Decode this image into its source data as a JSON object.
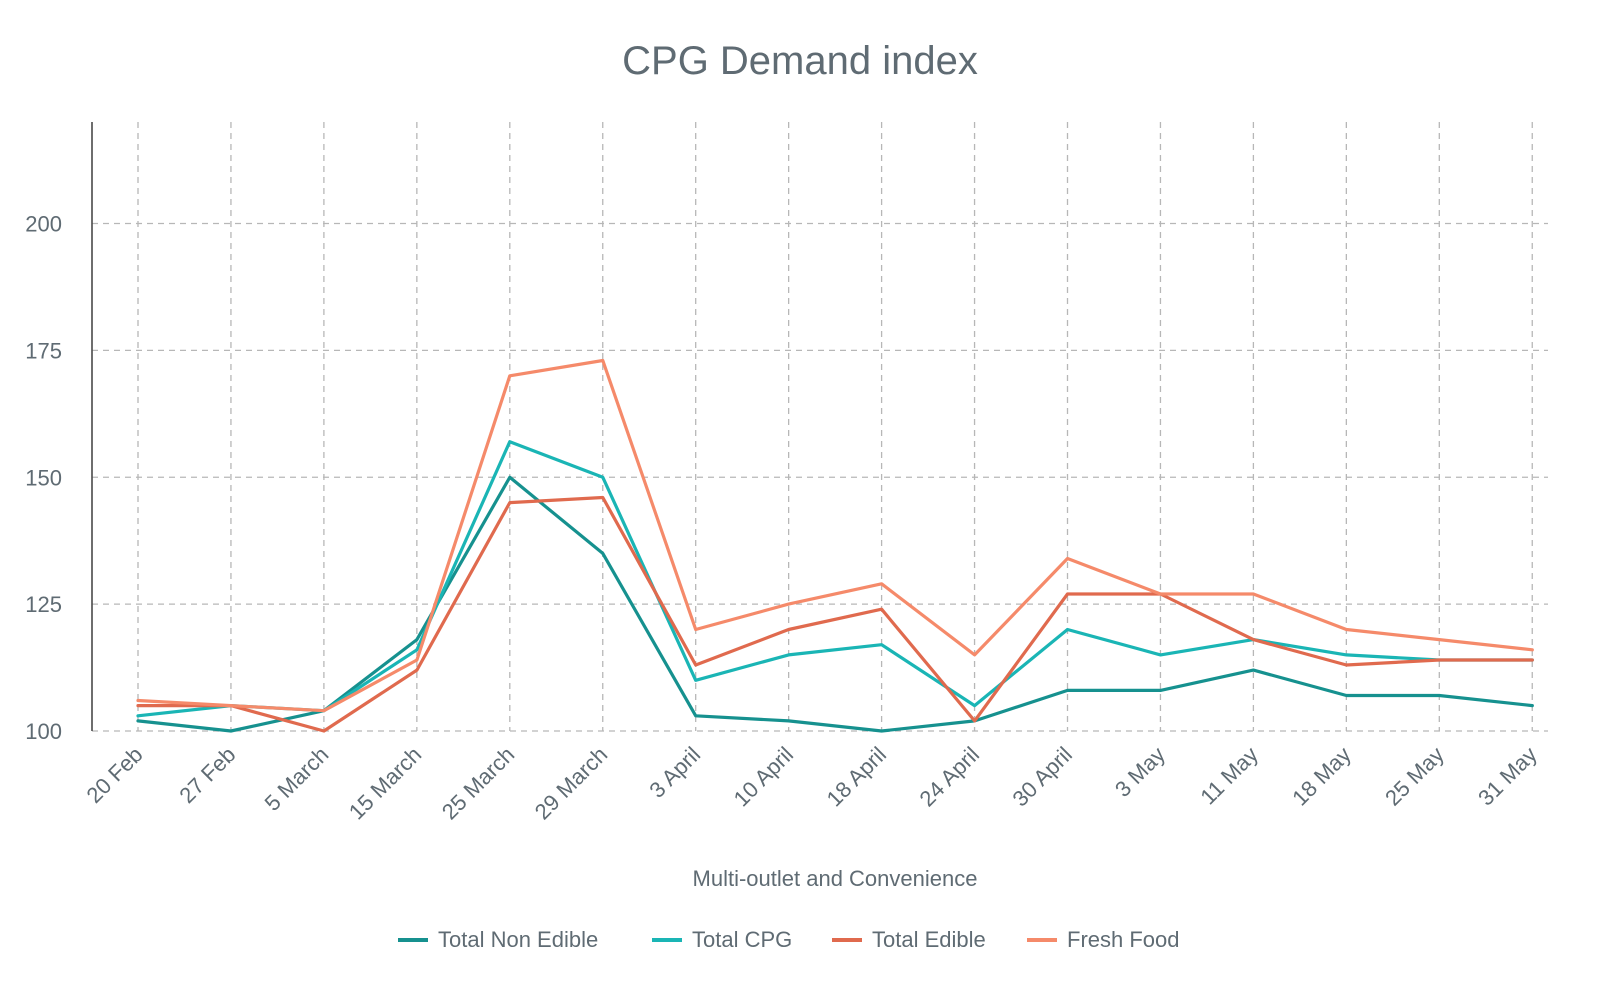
{
  "chart_data": {
    "type": "line",
    "title": "CPG Demand index",
    "xlabel": "Multi-outlet and Convenience",
    "ylabel": "",
    "categories": [
      "20 Feb",
      "27 Feb",
      "5 March",
      "15 March",
      "25 March",
      "29 March",
      "3 April",
      "10 April",
      "18 April",
      "24 April",
      "30 April",
      "3 May",
      "11 May",
      "18 May",
      "25 May",
      "31 May"
    ],
    "yticks": [
      100,
      125,
      150,
      175,
      200
    ],
    "ylim": [
      100,
      220
    ],
    "grid": true,
    "legend_position": "bottom",
    "series": [
      {
        "name": "Total Non Edible",
        "color": "#16918f",
        "values": [
          102,
          100,
          104,
          118,
          150,
          135,
          103,
          102,
          100,
          102,
          108,
          108,
          112,
          107,
          107,
          105
        ]
      },
      {
        "name": "Total CPG",
        "color": "#1ab5b5",
        "values": [
          103,
          105,
          104,
          116,
          157,
          150,
          110,
          115,
          117,
          105,
          120,
          115,
          118,
          115,
          114,
          114
        ]
      },
      {
        "name": "Total Edible",
        "color": "#e06a4e",
        "values": [
          105,
          105,
          100,
          112,
          145,
          146,
          113,
          120,
          124,
          102,
          127,
          127,
          118,
          113,
          114,
          114
        ]
      },
      {
        "name": "Fresh Food",
        "color": "#f58a6a",
        "values": [
          106,
          105,
          104,
          114,
          170,
          173,
          120,
          125,
          129,
          115,
          134,
          127,
          127,
          120,
          118,
          116
        ]
      }
    ]
  }
}
